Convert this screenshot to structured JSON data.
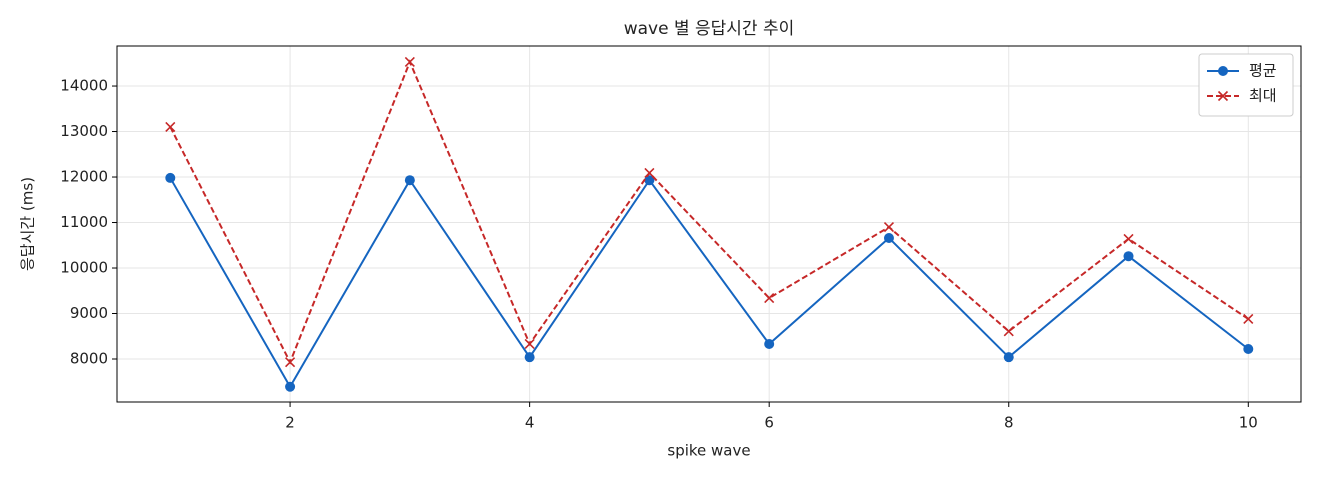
{
  "chart_data": {
    "type": "line",
    "title": "wave 별 응답시간 추이",
    "xlabel": "spike wave",
    "ylabel": "응답시간 (ms)",
    "x": [
      1,
      2,
      3,
      4,
      5,
      6,
      7,
      8,
      9,
      10
    ],
    "series": [
      {
        "name": "평균",
        "color": "#1565c0",
        "marker": "o",
        "linestyle": "solid",
        "values": [
          11980,
          7390,
          11930,
          8040,
          11930,
          8330,
          10660,
          8040,
          10260,
          8220
        ]
      },
      {
        "name": "최대",
        "color": "#c62828",
        "marker": "x",
        "linestyle": "dashed",
        "values": [
          13100,
          7930,
          14530,
          8330,
          12090,
          9340,
          10900,
          8610,
          10640,
          8880
        ]
      }
    ],
    "xlim": [
      0.555,
      10.44
    ],
    "ylim": [
      7055,
      14880
    ],
    "xticks": [
      2,
      4,
      6,
      8,
      10
    ],
    "yticks": [
      8000,
      9000,
      10000,
      11000,
      12000,
      13000,
      14000
    ],
    "grid": true,
    "legend": "upper right"
  }
}
